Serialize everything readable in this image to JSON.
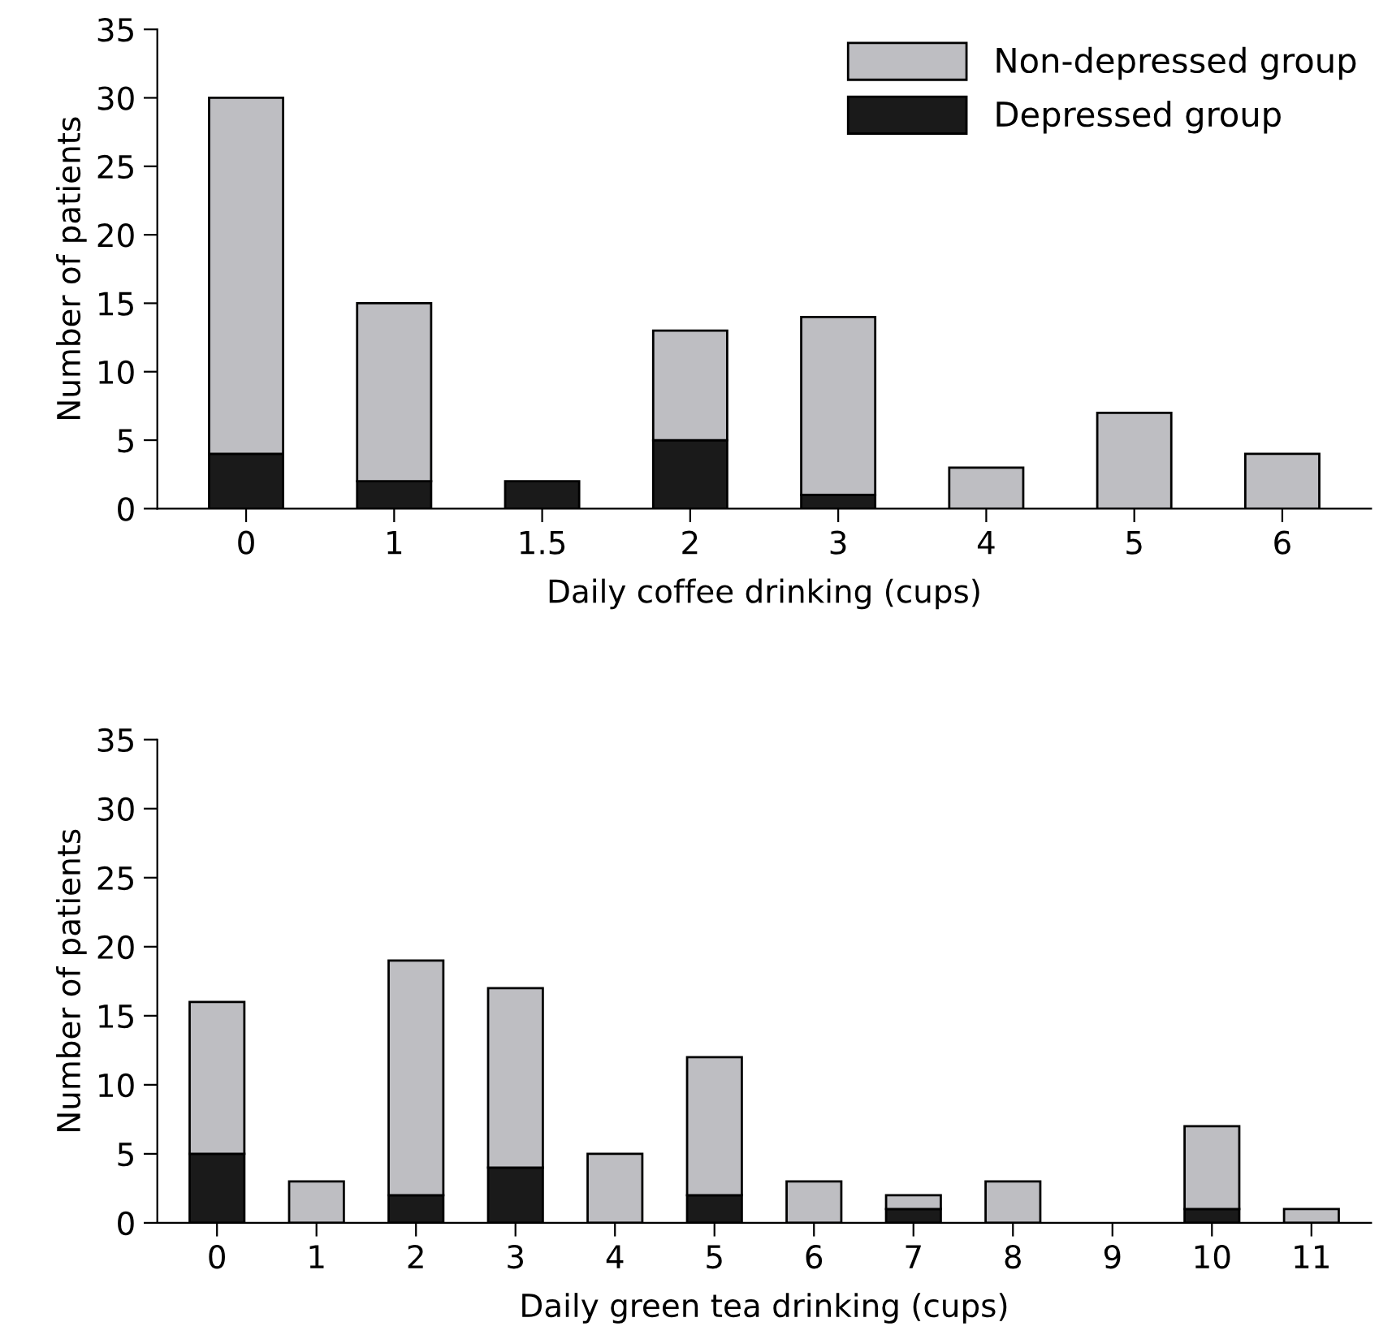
{
  "chart_data": [
    {
      "type": "bar",
      "stacked": true,
      "xlabel": "Daily coffee drinking (cups)",
      "ylabel": "Number of patients",
      "categories": [
        "0",
        "1",
        "1.5",
        "2",
        "3",
        "4",
        "5",
        "6"
      ],
      "series": [
        {
          "name": "Depressed group",
          "color": "#1a1a1a",
          "values": [
            4,
            2,
            2,
            5,
            1,
            0,
            0,
            0
          ]
        },
        {
          "name": "Non-depressed group",
          "color": "#bebec2",
          "values": [
            26,
            13,
            0,
            8,
            13,
            3,
            7,
            4
          ]
        }
      ],
      "ylim": [
        0,
        35
      ],
      "yticks": [
        0,
        5,
        10,
        15,
        20,
        25,
        30,
        35
      ],
      "grid": false,
      "legend": "top right"
    },
    {
      "type": "bar",
      "stacked": true,
      "xlabel": "Daily green tea drinking (cups)",
      "ylabel": "Number of patients",
      "categories": [
        "0",
        "1",
        "2",
        "3",
        "4",
        "5",
        "6",
        "7",
        "8",
        "9",
        "10",
        "11"
      ],
      "series": [
        {
          "color": "#1a1a1a",
          "values": [
            5,
            0,
            2,
            4,
            0,
            2,
            0,
            1,
            0,
            0,
            1,
            0
          ]
        },
        {
          "color": "#bebec2",
          "values": [
            11,
            3,
            17,
            13,
            5,
            10,
            3,
            1,
            3,
            0,
            6,
            1
          ]
        }
      ],
      "ylim": [
        0,
        35
      ],
      "yticks": [
        0,
        5,
        10,
        15,
        20,
        25,
        30,
        35
      ],
      "grid": false,
      "legend": false
    }
  ]
}
